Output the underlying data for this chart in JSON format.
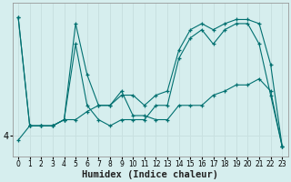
{
  "xlabel": "Humidex (Indice chaleur)",
  "background_color": "#d6eeee",
  "line_color": "#007070",
  "grid_color": "#c8e0e0",
  "series": [
    [
      9.8,
      4.5,
      4.5,
      4.5,
      4.8,
      8.5,
      5.5,
      4.8,
      4.5,
      4.8,
      4.8,
      4.8,
      5.5,
      5.5,
      7.8,
      8.8,
      9.2,
      8.5,
      9.2,
      9.5,
      9.5,
      8.5,
      6.0,
      3.5
    ],
    [
      9.8,
      4.5,
      4.5,
      4.5,
      4.8,
      9.5,
      7.0,
      5.5,
      5.5,
      6.0,
      6.0,
      5.5,
      6.0,
      6.2,
      8.2,
      9.2,
      9.5,
      9.2,
      9.5,
      9.7,
      9.7,
      9.5,
      7.5,
      3.5
    ],
    [
      3.8,
      4.5,
      4.5,
      4.5,
      4.8,
      4.8,
      5.2,
      5.5,
      5.5,
      6.2,
      5.0,
      5.0,
      4.8,
      4.8,
      5.5,
      5.5,
      5.5,
      6.0,
      6.2,
      6.5,
      6.5,
      6.8,
      6.2,
      3.5
    ]
  ],
  "ylim": [
    3.0,
    10.5
  ],
  "yticks": [
    4
  ],
  "ytick_labels": [
    "4"
  ],
  "xlim": [
    -0.5,
    23.5
  ],
  "xtick_fontsize": 5.5,
  "ytick_fontsize": 7.0,
  "xlabel_fontsize": 7.5
}
